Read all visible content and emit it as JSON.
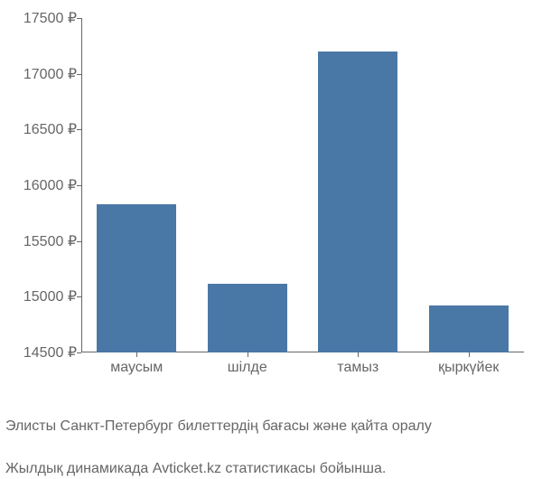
{
  "chart": {
    "type": "bar",
    "categories": [
      "маусым",
      "шілде",
      "тамыз",
      "қыркүйек"
    ],
    "values": [
      15830,
      15120,
      17200,
      14920
    ],
    "bar_color": "#4a78a6",
    "background_color": "#ffffff",
    "y_ticks": [
      14500,
      15000,
      15500,
      16000,
      16500,
      17000,
      17500
    ],
    "y_tick_labels": [
      "14500 ₽",
      "15000 ₽",
      "15500 ₽",
      "16000 ₽",
      "16500 ₽",
      "17000 ₽",
      "17500 ₽"
    ],
    "ylim": [
      14500,
      17500
    ],
    "tick_label_color": "#666666",
    "tick_fontsize": 16,
    "bar_width_ratio": 0.72,
    "axis_color": "#666666"
  },
  "caption": {
    "line1": "Элисты Санкт-Петербург билеттердің бағасы және қайта оралу",
    "line2": "Жылдық динамикада Avticket.kz статистикасы бойынша.",
    "color": "#666666",
    "fontsize": 16
  }
}
